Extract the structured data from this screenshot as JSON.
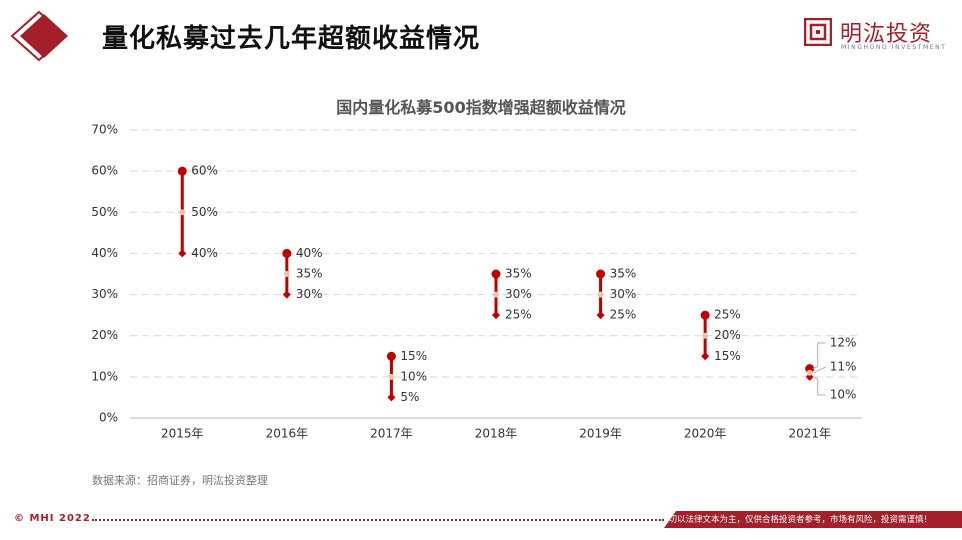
{
  "header": {
    "title": "量化私募过去几年超额收益情况",
    "brand_name": "明汯投资",
    "brand_sub": "MINGHONG INVESTMENT"
  },
  "colors": {
    "accent": "#a31f2a",
    "mark": "#c00000",
    "mid_marker": "#e8c9a6",
    "grid": "#d9d9d9",
    "callout": "#aab4c8"
  },
  "chart_data": {
    "type": "range",
    "title": "国内量化私募500指数增强超额收益情况",
    "xlabel": "",
    "ylabel": "",
    "ylim": [
      0,
      70
    ],
    "y_ticks": [
      "0%",
      "10%",
      "20%",
      "30%",
      "40%",
      "50%",
      "60%",
      "70%"
    ],
    "grid": true,
    "categories": [
      "2015年",
      "2016年",
      "2017年",
      "2018年",
      "2019年",
      "2020年",
      "2021年"
    ],
    "high": [
      60,
      40,
      15,
      35,
      35,
      25,
      12
    ],
    "mid": [
      50,
      35,
      10,
      30,
      30,
      20,
      11
    ],
    "low": [
      40,
      30,
      5,
      25,
      25,
      15,
      10
    ],
    "high_labels": [
      "60%",
      "40%",
      "15%",
      "35%",
      "35%",
      "25%",
      "12%"
    ],
    "mid_labels": [
      "50%",
      "35%",
      "10%",
      "30%",
      "30%",
      "20%",
      "11%"
    ],
    "low_labels": [
      "40%",
      "30%",
      "5%",
      "25%",
      "25%",
      "15%",
      "10%"
    ]
  },
  "source": "数据来源：招商证券，明汯投资整理",
  "footer": {
    "copyright": "© MHI 2022",
    "disclaimer": "一切以法律文本为主，仅供合格投资者参考，市场有风险，投资需谨慎！"
  }
}
